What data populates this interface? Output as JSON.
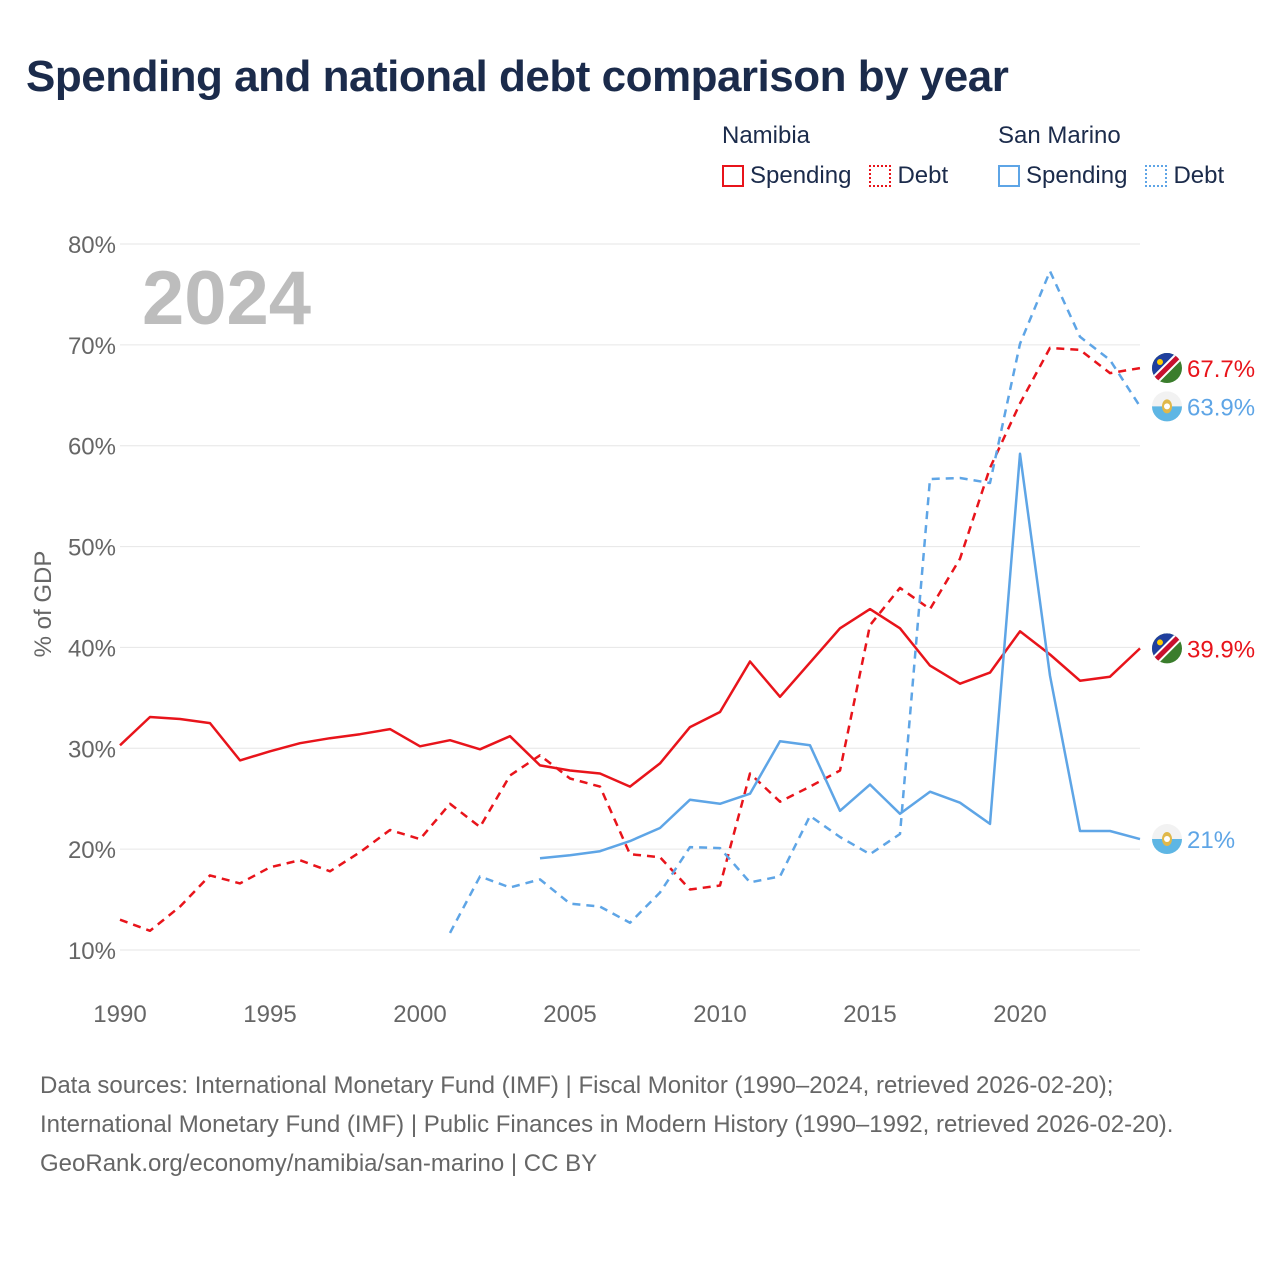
{
  "title": "Spending and national debt comparison by year",
  "legend": {
    "groups": [
      {
        "country": "Namibia",
        "items": [
          "Spending",
          "Debt"
        ]
      },
      {
        "country": "San Marino",
        "items": [
          "Spending",
          "Debt"
        ]
      }
    ]
  },
  "colors": {
    "namibia": "#e8141b",
    "san_marino": "#5ea5e6",
    "grid": "#e6e6e6",
    "axis_text": "#666666",
    "year_label": "#bdbdbd"
  },
  "chart_data": {
    "type": "line",
    "ylabel": "% of GDP",
    "xlabel": "",
    "year_label": "2024",
    "xlim": [
      1990,
      2024
    ],
    "ylim": [
      10,
      80
    ],
    "x_ticks": [
      1990,
      1995,
      2000,
      2005,
      2010,
      2015,
      2020
    ],
    "y_ticks": [
      10,
      20,
      30,
      40,
      50,
      60,
      70,
      80
    ],
    "y_tick_labels": [
      "10%",
      "20%",
      "30%",
      "40%",
      "50%",
      "60%",
      "70%",
      "80%"
    ],
    "series": [
      {
        "name": "Namibia Spending",
        "country": "Namibia",
        "kind": "Spending",
        "color": "#e8141b",
        "dashed": false,
        "x": [
          1990,
          1991,
          1992,
          1993,
          1994,
          1995,
          1996,
          1997,
          1998,
          1999,
          2000,
          2001,
          2002,
          2003,
          2004,
          2005,
          2006,
          2007,
          2008,
          2009,
          2010,
          2011,
          2012,
          2013,
          2014,
          2015,
          2016,
          2017,
          2018,
          2019,
          2020,
          2021,
          2022,
          2023,
          2024
        ],
        "values": [
          30.3,
          33.1,
          32.9,
          32.5,
          28.8,
          29.7,
          30.5,
          31.0,
          31.4,
          31.9,
          30.2,
          30.8,
          29.9,
          31.2,
          28.3,
          27.8,
          27.5,
          26.2,
          28.5,
          32.1,
          33.6,
          38.6,
          35.1,
          38.5,
          41.9,
          43.8,
          41.9,
          38.2,
          36.4,
          37.5,
          41.6,
          39.3,
          36.7,
          37.1,
          39.9
        ],
        "end_label": "39.9%"
      },
      {
        "name": "Namibia Debt",
        "country": "Namibia",
        "kind": "Debt",
        "color": "#e8141b",
        "dashed": true,
        "x": [
          1990,
          1991,
          1992,
          1993,
          1994,
          1995,
          1996,
          1997,
          1998,
          1999,
          2000,
          2001,
          2002,
          2003,
          2004,
          2005,
          2006,
          2007,
          2008,
          2009,
          2010,
          2011,
          2012,
          2013,
          2014,
          2015,
          2016,
          2017,
          2018,
          2019,
          2020,
          2021,
          2022,
          2023,
          2024
        ],
        "values": [
          13.0,
          11.9,
          14.3,
          17.4,
          16.6,
          18.2,
          18.9,
          17.8,
          19.7,
          21.9,
          21.0,
          24.5,
          22.2,
          27.3,
          29.3,
          27.0,
          26.2,
          19.5,
          19.2,
          16.0,
          16.4,
          27.5,
          24.7,
          26.2,
          27.8,
          42.2,
          45.9,
          43.8,
          48.8,
          57.8,
          64.2,
          69.7,
          69.5,
          67.2,
          67.7
        ],
        "end_label": "67.7%"
      },
      {
        "name": "San Marino Spending",
        "country": "San Marino",
        "kind": "Spending",
        "color": "#5ea5e6",
        "dashed": false,
        "x": [
          2004,
          2005,
          2006,
          2007,
          2008,
          2009,
          2010,
          2011,
          2012,
          2013,
          2014,
          2015,
          2016,
          2017,
          2018,
          2019,
          2020,
          2021,
          2022,
          2023,
          2024
        ],
        "values": [
          19.1,
          19.4,
          19.8,
          20.8,
          22.1,
          24.9,
          24.5,
          25.5,
          30.7,
          30.3,
          23.8,
          26.4,
          23.5,
          25.7,
          24.6,
          22.5,
          59.2,
          37.2,
          21.8,
          21.8,
          21.0
        ],
        "end_label": "21%"
      },
      {
        "name": "San Marino Debt",
        "country": "San Marino",
        "kind": "Debt",
        "color": "#5ea5e6",
        "dashed": true,
        "x": [
          2001,
          2002,
          2003,
          2004,
          2005,
          2006,
          2007,
          2008,
          2009,
          2010,
          2011,
          2012,
          2013,
          2014,
          2015,
          2016,
          2017,
          2018,
          2019,
          2020,
          2021,
          2022,
          2023,
          2024
        ],
        "values": [
          11.7,
          17.3,
          16.2,
          17.0,
          14.6,
          14.3,
          12.7,
          15.7,
          20.2,
          20.1,
          16.7,
          17.3,
          23.3,
          21.2,
          19.5,
          21.5,
          56.7,
          56.8,
          56.3,
          70.1,
          77.3,
          70.8,
          68.5,
          63.9
        ],
        "end_label": "63.9%"
      }
    ]
  },
  "footer": {
    "sources": "Data sources: International Monetary Fund (IMF) | Fiscal Monitor (1990–2024, retrieved 2026-02-20); International Monetary Fund (IMF) | Public Finances in Modern History (1990–1992, retrieved 2026-02-20).",
    "credit": "GeoRank.org/economy/namibia/san-marino | CC BY"
  }
}
